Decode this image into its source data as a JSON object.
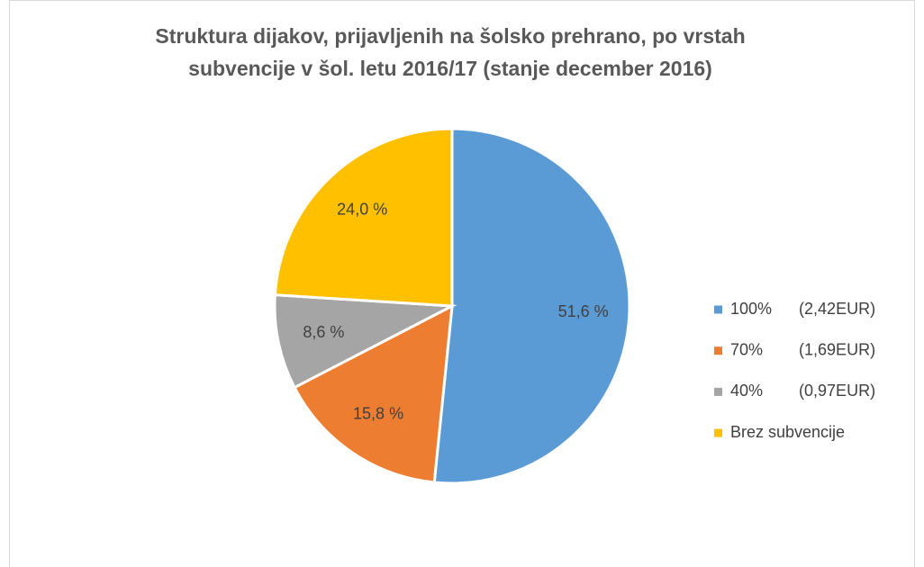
{
  "chart_data": {
    "type": "pie",
    "title": [
      "Struktura dijakov, prijavljenih na šolsko prehrano, po vrstah",
      "subvencije v šol. letu 2016/17 (stanje december 2016)"
    ],
    "categories": [
      "100%      (2,42EUR)",
      "70%        (1,69EUR)",
      "40%        (0,97EUR)",
      "Brez subvencije"
    ],
    "values": [
      51.6,
      15.8,
      8.6,
      24.0
    ],
    "value_labels": [
      "51,6 %",
      "15,8 %",
      "8,6 %",
      "24,0 %"
    ],
    "colors": [
      "#5b9bd5",
      "#ed7d31",
      "#a5a5a5",
      "#ffc000"
    ],
    "legend": "right"
  }
}
